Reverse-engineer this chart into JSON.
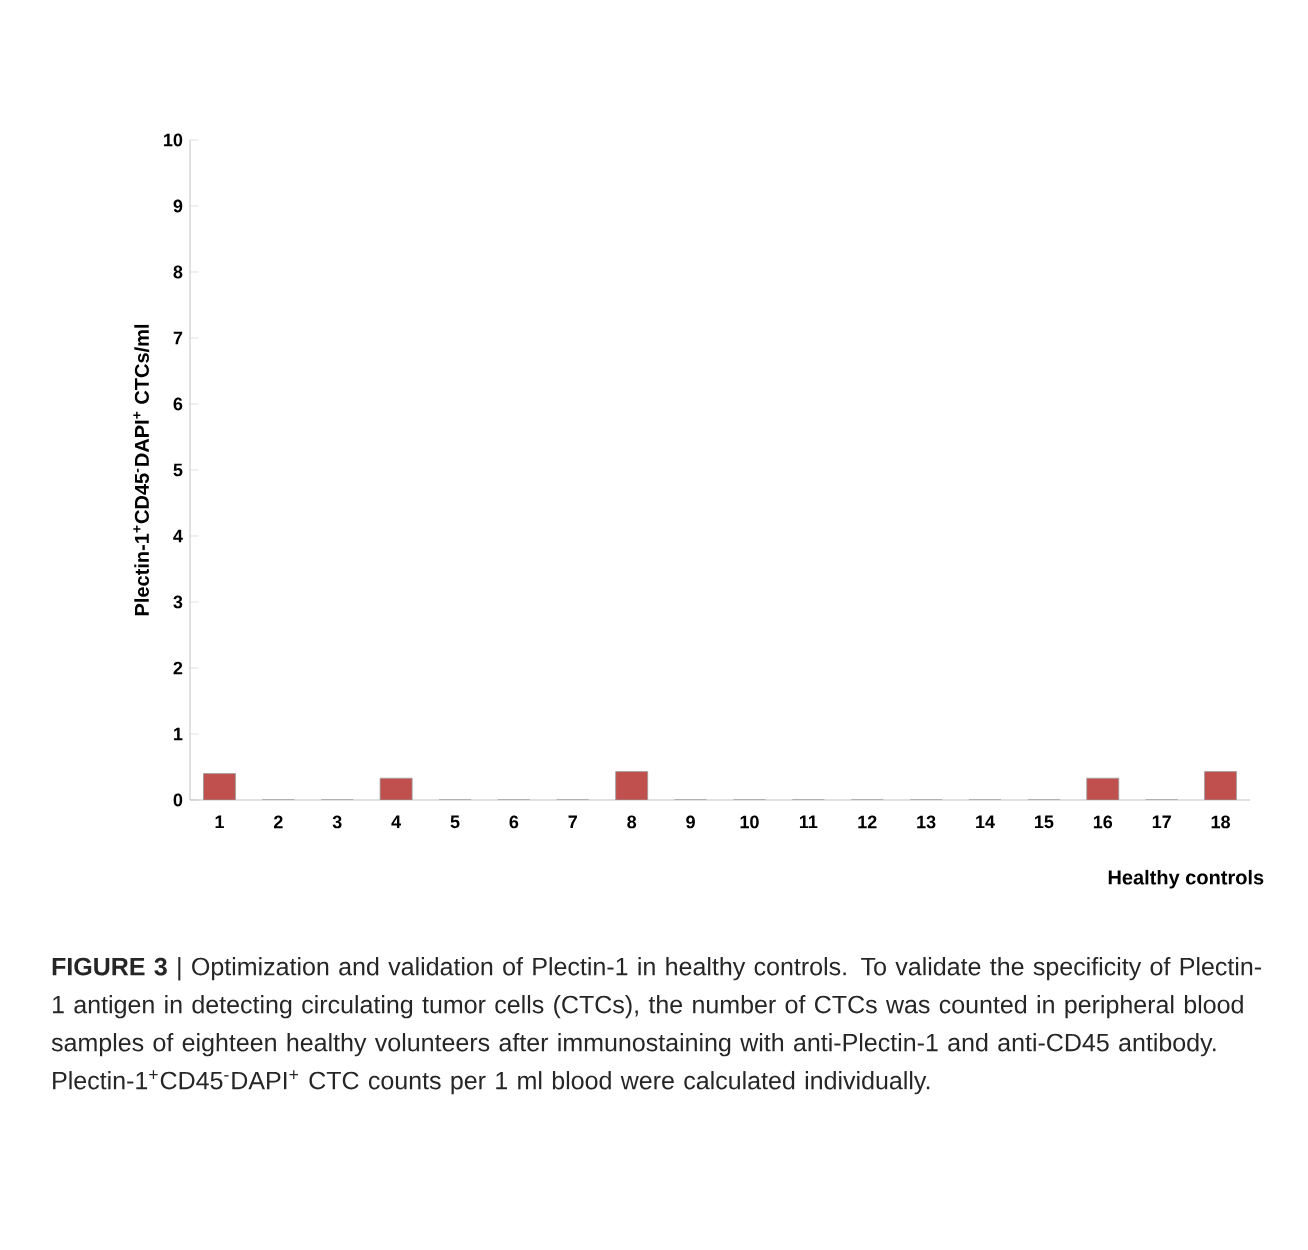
{
  "chart_data": {
    "type": "bar",
    "xlabel": "Healthy controls",
    "ylabel": "Plectin-1$^{+}$CD45$^{-}$DAPI$^{+}$ CTCs/ml",
    "categories": [
      "1",
      "2",
      "3",
      "4",
      "5",
      "6",
      "7",
      "8",
      "9",
      "10",
      "11",
      "12",
      "13",
      "14",
      "15",
      "16",
      "17",
      "18"
    ],
    "values": [
      0.4,
      0,
      0,
      0.33,
      0,
      0,
      0,
      0.43,
      0,
      0,
      0,
      0,
      0,
      0,
      0,
      0.33,
      0,
      0.43
    ],
    "color": "#c0504d",
    "ylim": [
      0,
      10
    ],
    "yticks": [
      0,
      1,
      2,
      3,
      4,
      5,
      6,
      7,
      8,
      9,
      10
    ],
    "grid": false,
    "annotations": [
      "**FIGURE 3** | Optimization and validation of Plectin-1 in healthy controls. To validate the specificity of Plectin-1 antigen in detecting circulating tumor cells (CTCs), the number of CTCs was counted in peripheral blood samples of eighteen healthy volunteers after immunostaining with anti-Plectin-1 and anti-CD45 antibody. Plectin-1$^{+}$CD45$^{-}$DAPI$^{+}$ CTC counts per 1 ml blood were calculated individually."
    ]
  }
}
